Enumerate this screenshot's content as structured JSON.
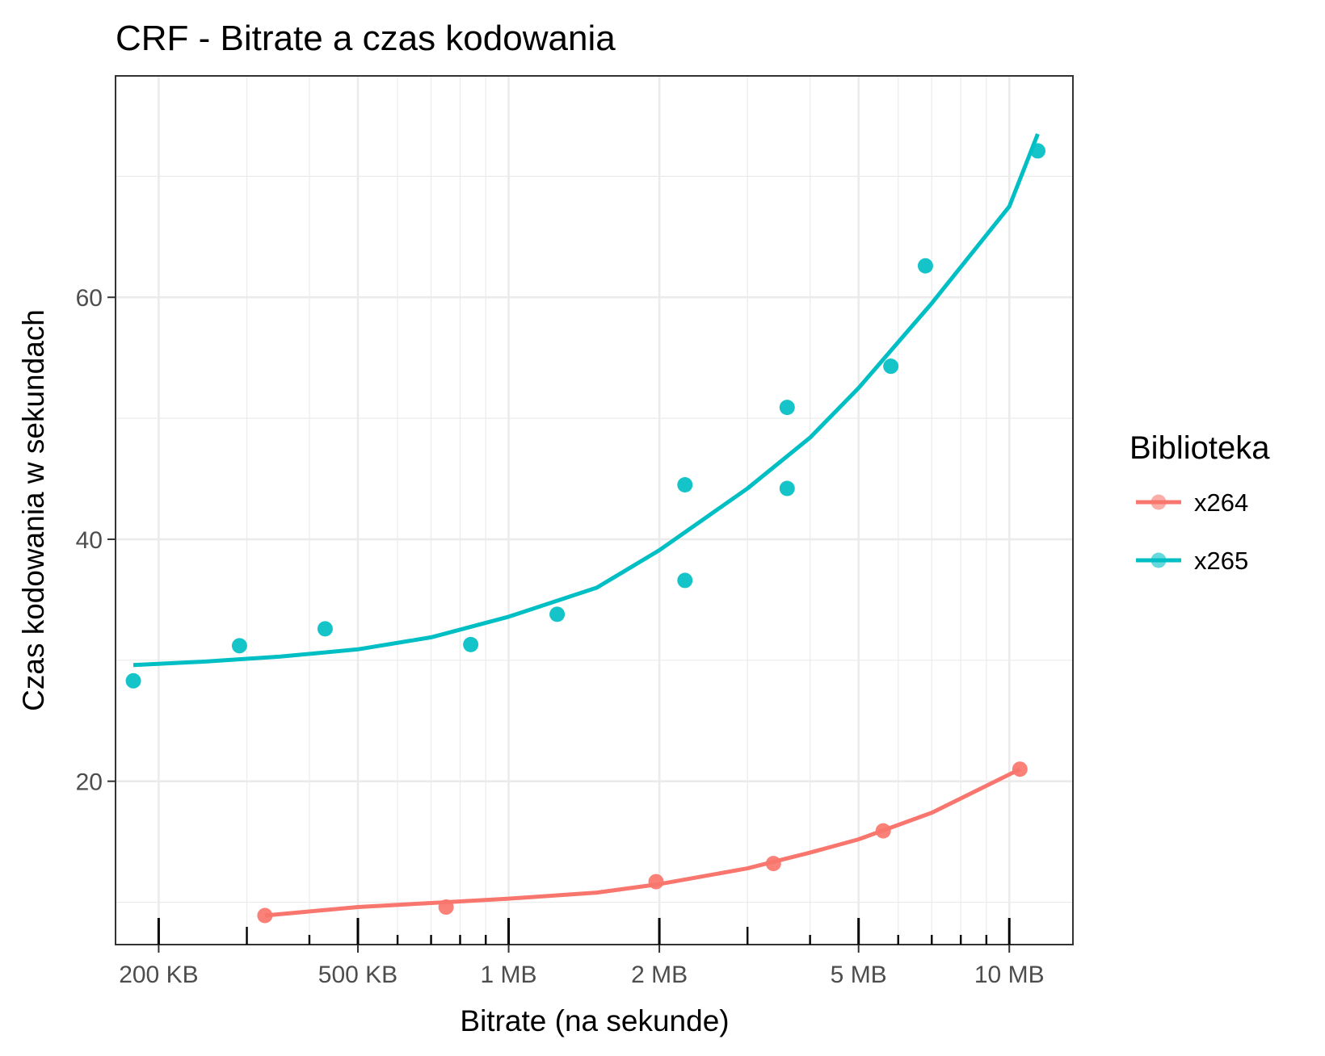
{
  "chart_data": {
    "type": "scatter",
    "title": "CRF - Bitrate a czas kodowania",
    "xlabel": "Bitrate (na sekunde)",
    "ylabel": "Czas kodowania w sekundach",
    "x_scale": "log",
    "x_unit": "KB",
    "xlim": [
      164,
      13400
    ],
    "ylim": [
      6.5,
      78.3
    ],
    "x_ticks": [
      {
        "value": 200,
        "label": "200 KB"
      },
      {
        "value": 500,
        "label": "500 KB"
      },
      {
        "value": 1000,
        "label": "1 MB"
      },
      {
        "value": 2000,
        "label": "2 MB"
      },
      {
        "value": 5000,
        "label": "5 MB"
      },
      {
        "value": 10000,
        "label": "10 MB"
      }
    ],
    "x_minor_ticks": [
      300,
      400,
      600,
      700,
      800,
      900,
      3000,
      4000,
      6000,
      7000,
      8000,
      9000
    ],
    "y_ticks": [
      20,
      40,
      60
    ],
    "y_minor_grid": [
      10,
      30,
      50,
      70
    ],
    "grid": true,
    "legend": {
      "title": "Biblioteka",
      "position": "right"
    },
    "series": [
      {
        "name": "x264",
        "color": "#F8766D",
        "points": [
          {
            "x": 326,
            "y": 8.9
          },
          {
            "x": 750,
            "y": 9.6
          },
          {
            "x": 1970,
            "y": 11.7
          },
          {
            "x": 3380,
            "y": 13.2
          },
          {
            "x": 5600,
            "y": 15.9
          },
          {
            "x": 10500,
            "y": 21.0
          }
        ],
        "trend": [
          {
            "x": 326,
            "y": 8.9
          },
          {
            "x": 500,
            "y": 9.6
          },
          {
            "x": 750,
            "y": 10.0
          },
          {
            "x": 1000,
            "y": 10.3
          },
          {
            "x": 1500,
            "y": 10.8
          },
          {
            "x": 2000,
            "y": 11.5
          },
          {
            "x": 3000,
            "y": 12.8
          },
          {
            "x": 4000,
            "y": 14.1
          },
          {
            "x": 5000,
            "y": 15.2
          },
          {
            "x": 7000,
            "y": 17.4
          },
          {
            "x": 10500,
            "y": 21.0
          }
        ]
      },
      {
        "name": "x265",
        "color": "#00BFC4",
        "points": [
          {
            "x": 178,
            "y": 28.3
          },
          {
            "x": 290,
            "y": 31.2
          },
          {
            "x": 430,
            "y": 32.6
          },
          {
            "x": 840,
            "y": 31.3
          },
          {
            "x": 1250,
            "y": 33.8
          },
          {
            "x": 2250,
            "y": 36.6
          },
          {
            "x": 2250,
            "y": 44.5
          },
          {
            "x": 3600,
            "y": 44.2
          },
          {
            "x": 3600,
            "y": 50.9
          },
          {
            "x": 5800,
            "y": 54.3
          },
          {
            "x": 6800,
            "y": 62.6
          },
          {
            "x": 11400,
            "y": 72.1
          }
        ],
        "trend": [
          {
            "x": 178,
            "y": 29.6
          },
          {
            "x": 250,
            "y": 29.9
          },
          {
            "x": 350,
            "y": 30.3
          },
          {
            "x": 500,
            "y": 30.9
          },
          {
            "x": 700,
            "y": 31.9
          },
          {
            "x": 1000,
            "y": 33.6
          },
          {
            "x": 1500,
            "y": 36.0
          },
          {
            "x": 2000,
            "y": 39.1
          },
          {
            "x": 3000,
            "y": 44.2
          },
          {
            "x": 4000,
            "y": 48.4
          },
          {
            "x": 5000,
            "y": 52.5
          },
          {
            "x": 7000,
            "y": 59.5
          },
          {
            "x": 10000,
            "y": 67.5
          },
          {
            "x": 11400,
            "y": 73.5
          }
        ]
      }
    ]
  }
}
